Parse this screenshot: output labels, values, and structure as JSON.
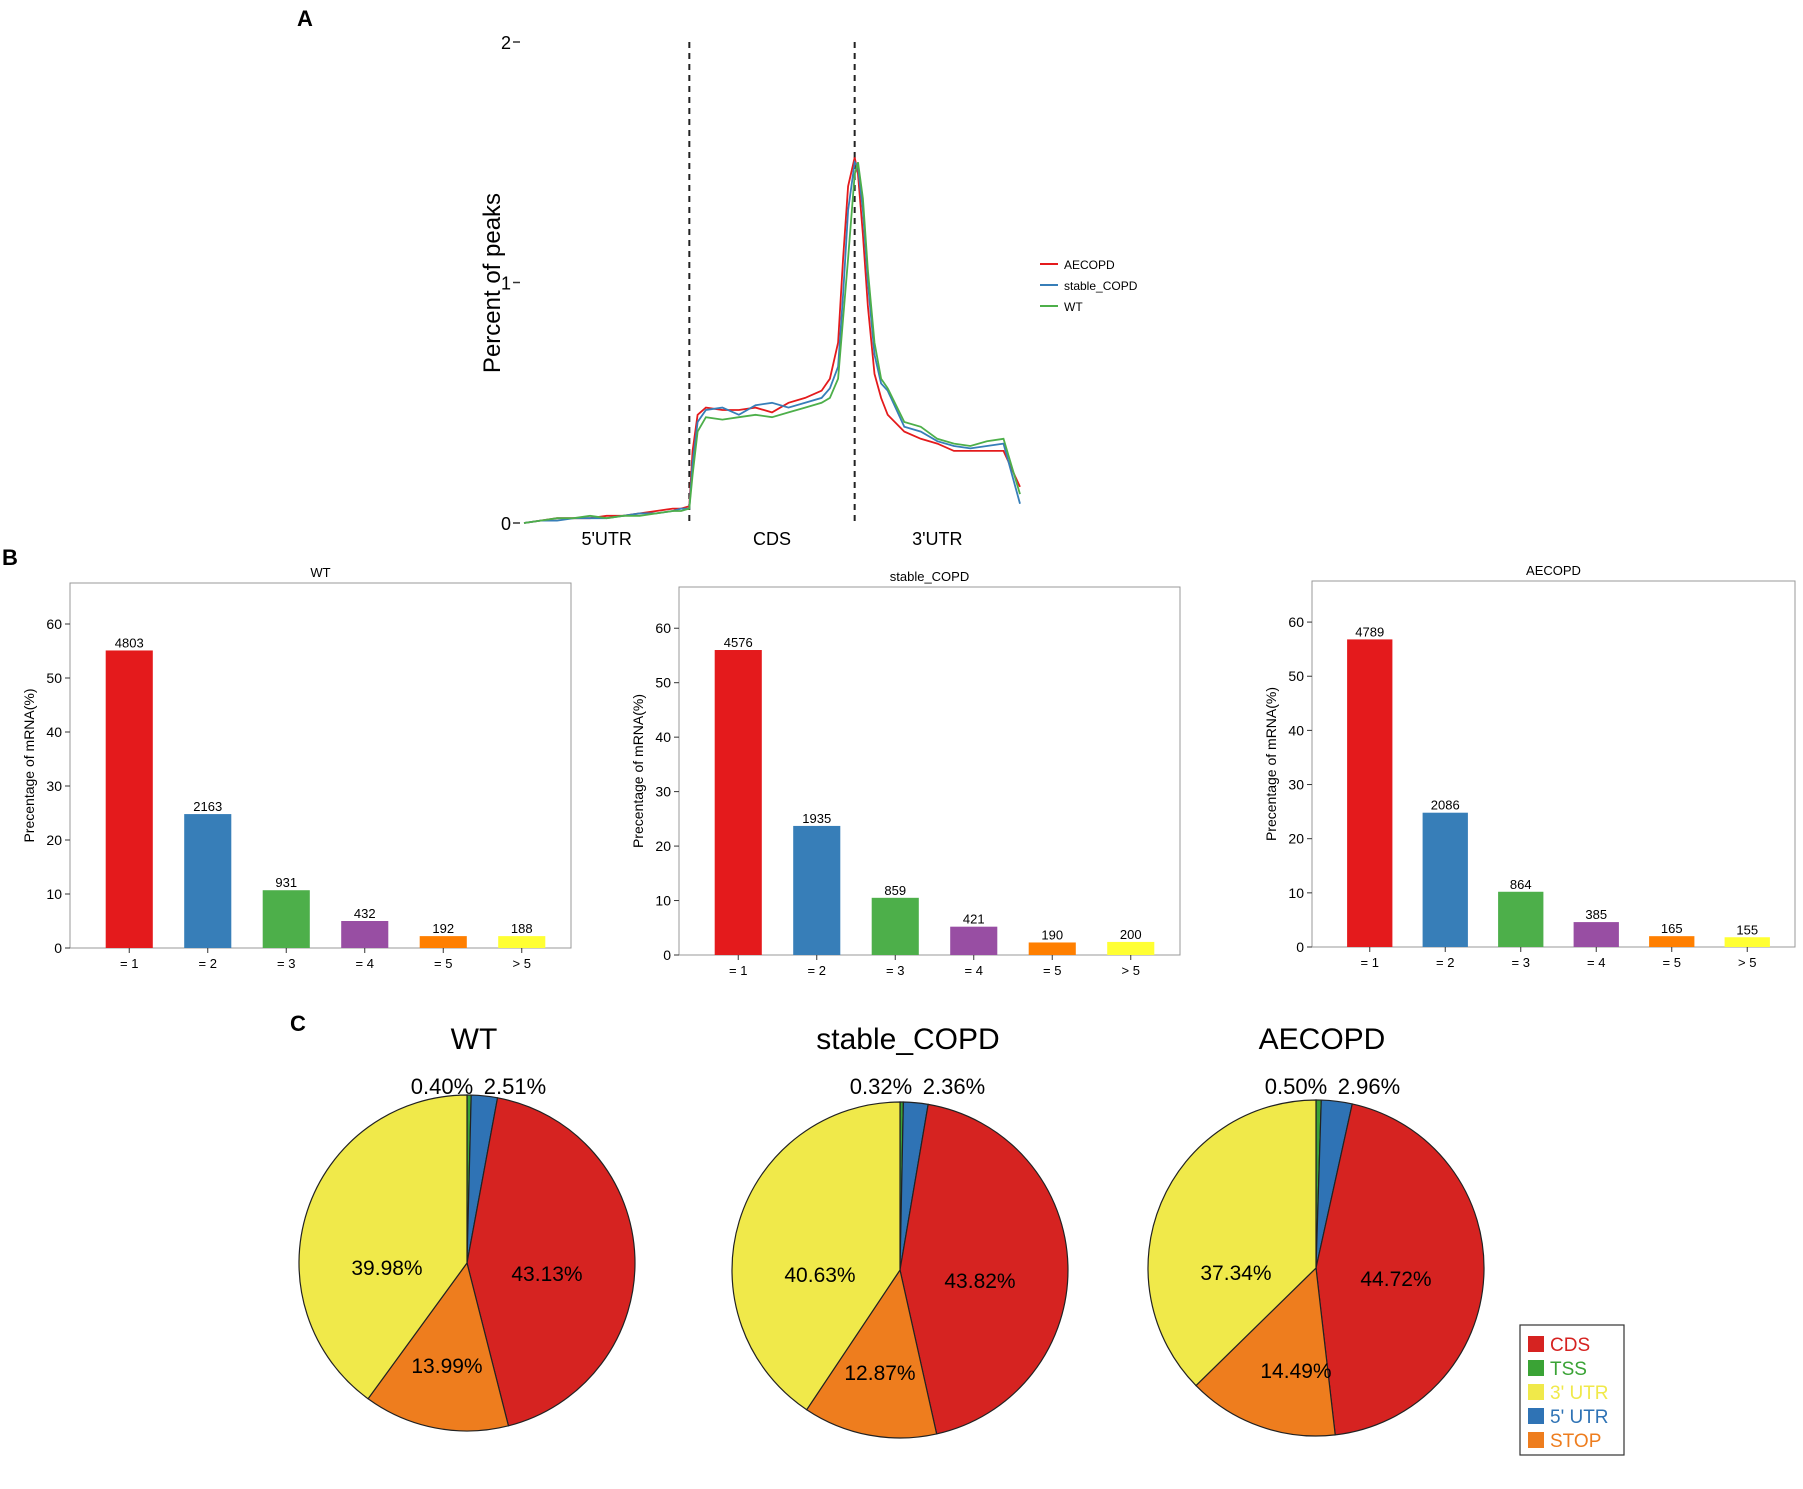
{
  "panel_labels": [
    "A",
    "B",
    "C"
  ],
  "chart_data": [
    {
      "type": "line",
      "panel": "A",
      "ylabel": "Percent of peaks",
      "ylim": [
        0,
        2
      ],
      "yticks": [
        "0",
        "1",
        "2"
      ],
      "xlim": [
        0,
        3
      ],
      "region_labels": [
        "5'UTR",
        "CDS",
        "3'UTR"
      ],
      "region_boundaries": [
        1,
        2
      ],
      "legend_position": "right",
      "series": [
        {
          "name": "AECOPD",
          "color": "#e41a1c",
          "x": [
            0,
            0.1,
            0.2,
            0.3,
            0.4,
            0.5,
            0.6,
            0.7,
            0.8,
            0.9,
            0.95,
            1.0,
            1.02,
            1.05,
            1.1,
            1.2,
            1.3,
            1.4,
            1.5,
            1.6,
            1.7,
            1.8,
            1.85,
            1.9,
            1.93,
            1.96,
            2.0,
            2.02,
            2.05,
            2.08,
            2.12,
            2.16,
            2.2,
            2.3,
            2.4,
            2.5,
            2.6,
            2.7,
            2.8,
            2.9,
            3.0
          ],
          "y": [
            0.0,
            0.01,
            0.02,
            0.02,
            0.02,
            0.03,
            0.03,
            0.04,
            0.05,
            0.06,
            0.06,
            0.07,
            0.3,
            0.45,
            0.48,
            0.47,
            0.47,
            0.48,
            0.46,
            0.5,
            0.52,
            0.55,
            0.6,
            0.75,
            1.1,
            1.4,
            1.52,
            1.45,
            1.2,
            0.9,
            0.62,
            0.52,
            0.45,
            0.38,
            0.35,
            0.33,
            0.3,
            0.3,
            0.3,
            0.3,
            0.15
          ]
        },
        {
          "name": "stable_COPD",
          "color": "#377eb8",
          "x": [
            0,
            0.1,
            0.2,
            0.3,
            0.4,
            0.5,
            0.6,
            0.7,
            0.8,
            0.9,
            0.95,
            1.0,
            1.02,
            1.05,
            1.1,
            1.2,
            1.3,
            1.4,
            1.5,
            1.6,
            1.7,
            1.8,
            1.85,
            1.9,
            1.93,
            1.96,
            2.0,
            2.02,
            2.05,
            2.08,
            2.12,
            2.16,
            2.2,
            2.3,
            2.4,
            2.5,
            2.6,
            2.7,
            2.8,
            2.9,
            3.0
          ],
          "y": [
            0.0,
            0.01,
            0.01,
            0.02,
            0.02,
            0.02,
            0.03,
            0.04,
            0.04,
            0.05,
            0.06,
            0.06,
            0.25,
            0.42,
            0.47,
            0.48,
            0.45,
            0.49,
            0.5,
            0.48,
            0.5,
            0.52,
            0.56,
            0.65,
            0.95,
            1.3,
            1.5,
            1.48,
            1.3,
            1.0,
            0.7,
            0.58,
            0.55,
            0.4,
            0.38,
            0.34,
            0.32,
            0.31,
            0.32,
            0.33,
            0.08
          ]
        },
        {
          "name": "WT",
          "color": "#4daf4a",
          "x": [
            0,
            0.1,
            0.2,
            0.3,
            0.4,
            0.5,
            0.6,
            0.7,
            0.8,
            0.9,
            0.95,
            1.0,
            1.02,
            1.05,
            1.1,
            1.2,
            1.3,
            1.4,
            1.5,
            1.6,
            1.7,
            1.8,
            1.85,
            1.9,
            1.93,
            1.96,
            2.0,
            2.02,
            2.05,
            2.08,
            2.12,
            2.16,
            2.2,
            2.3,
            2.4,
            2.5,
            2.6,
            2.7,
            2.8,
            2.9,
            3.0
          ],
          "y": [
            0.0,
            0.01,
            0.02,
            0.02,
            0.03,
            0.02,
            0.03,
            0.03,
            0.04,
            0.05,
            0.05,
            0.06,
            0.2,
            0.38,
            0.44,
            0.43,
            0.44,
            0.45,
            0.44,
            0.46,
            0.48,
            0.5,
            0.52,
            0.6,
            0.85,
            1.1,
            1.45,
            1.5,
            1.35,
            1.05,
            0.75,
            0.6,
            0.56,
            0.42,
            0.4,
            0.35,
            0.33,
            0.32,
            0.34,
            0.35,
            0.12
          ]
        }
      ]
    },
    {
      "type": "bar",
      "panel": "B",
      "title": "WT",
      "ylabel": "Precentage of mRNA(%)",
      "ylim": [
        0,
        65
      ],
      "yticks": [
        0,
        10,
        20,
        30,
        40,
        50,
        60
      ],
      "categories": [
        "= 1",
        "= 2",
        "= 3",
        "= 4",
        "= 5",
        "> 5"
      ],
      "values": [
        55.1,
        24.8,
        10.7,
        5.0,
        2.2,
        2.2
      ],
      "labels": [
        "4803",
        "2163",
        "931",
        "432",
        "192",
        "188"
      ],
      "colors": [
        "#e41a1c",
        "#377eb8",
        "#4daf4a",
        "#984ea3",
        "#ff7f00",
        "#ffff33"
      ]
    },
    {
      "type": "bar",
      "panel": "B",
      "title": "stable_COPD",
      "ylabel": "Precentage of mRNA(%)",
      "ylim": [
        0,
        65
      ],
      "yticks": [
        0,
        10,
        20,
        30,
        40,
        50,
        60
      ],
      "categories": [
        "= 1",
        "= 2",
        "= 3",
        "= 4",
        "= 5",
        "> 5"
      ],
      "values": [
        56.0,
        23.7,
        10.5,
        5.2,
        2.3,
        2.4
      ],
      "labels": [
        "4576",
        "1935",
        "859",
        "421",
        "190",
        "200"
      ],
      "colors": [
        "#e41a1c",
        "#377eb8",
        "#4daf4a",
        "#984ea3",
        "#ff7f00",
        "#ffff33"
      ]
    },
    {
      "type": "bar",
      "panel": "B",
      "title": "AECOPD",
      "ylabel": "Precentage of mRNA(%)",
      "ylim": [
        0,
        65
      ],
      "yticks": [
        0,
        10,
        20,
        30,
        40,
        50,
        60
      ],
      "categories": [
        "= 1",
        "= 2",
        "= 3",
        "= 4",
        "= 5",
        "> 5"
      ],
      "values": [
        56.8,
        24.8,
        10.2,
        4.6,
        2.0,
        1.8
      ],
      "labels": [
        "4789",
        "2086",
        "864",
        "385",
        "165",
        "155"
      ],
      "colors": [
        "#e41a1c",
        "#377eb8",
        "#4daf4a",
        "#984ea3",
        "#ff7f00",
        "#ffff33"
      ]
    },
    {
      "type": "pie",
      "panel": "C",
      "title": "WT",
      "slices": [
        {
          "label": "TSS",
          "value": 0.4,
          "text": "0.40%"
        },
        {
          "label": "5' UTR",
          "value": 2.51,
          "text": "2.51%"
        },
        {
          "label": "CDS",
          "value": 43.13,
          "text": "43.13%"
        },
        {
          "label": "STOP",
          "value": 13.99,
          "text": "13.99%"
        },
        {
          "label": "3' UTR",
          "value": 39.98,
          "text": "39.98%"
        }
      ]
    },
    {
      "type": "pie",
      "panel": "C",
      "title": "stable_COPD",
      "slices": [
        {
          "label": "TSS",
          "value": 0.32,
          "text": "0.32%"
        },
        {
          "label": "5' UTR",
          "value": 2.36,
          "text": "2.36%"
        },
        {
          "label": "CDS",
          "value": 43.82,
          "text": "43.82%"
        },
        {
          "label": "STOP",
          "value": 12.87,
          "text": "12.87%"
        },
        {
          "label": "3' UTR",
          "value": 40.63,
          "text": "40.63%"
        }
      ]
    },
    {
      "type": "pie",
      "panel": "C",
      "title": "AECOPD",
      "slices": [
        {
          "label": "TSS",
          "value": 0.5,
          "text": "0.50%"
        },
        {
          "label": "5' UTR",
          "value": 2.96,
          "text": "2.96%"
        },
        {
          "label": "CDS",
          "value": 44.72,
          "text": "44.72%"
        },
        {
          "label": "STOP",
          "value": 14.49,
          "text": "14.49%"
        },
        {
          "label": "3' UTR",
          "value": 37.34,
          "text": "37.34%"
        }
      ]
    }
  ],
  "pie_legend": {
    "position": "bottom-right",
    "items": [
      {
        "label": "CDS",
        "color": "#d62321"
      },
      {
        "label": "TSS",
        "color": "#3aa335"
      },
      {
        "label": "3' UTR",
        "color": "#f0e94a"
      },
      {
        "label": "5' UTR",
        "color": "#2f73b5"
      },
      {
        "label": "STOP",
        "color": "#ee7d1e"
      }
    ]
  }
}
